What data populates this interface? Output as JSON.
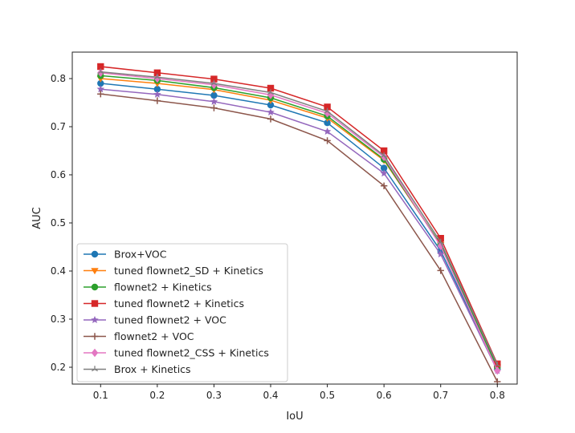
{
  "chart_data": {
    "type": "line",
    "title": "",
    "xlabel": "IoU",
    "ylabel": "AUC",
    "x": [
      0.1,
      0.2,
      0.3,
      0.4,
      0.5,
      0.6,
      0.7,
      0.8
    ],
    "x_ticks": [
      "0.1",
      "0.2",
      "0.3",
      "0.4",
      "0.5",
      "0.6",
      "0.7",
      "0.8"
    ],
    "y_ticks": [
      "0.2",
      "0.3",
      "0.4",
      "0.5",
      "0.6",
      "0.7",
      "0.8"
    ],
    "xlim": [
      0.05,
      0.835
    ],
    "ylim": [
      0.165,
      0.855
    ],
    "grid": false,
    "legend_position": "lower-left",
    "series": [
      {
        "name": "Brox+VOC",
        "color": "#1f77b4",
        "marker": "circle",
        "values": [
          0.79,
          0.778,
          0.765,
          0.745,
          0.708,
          0.614,
          0.442,
          0.196
        ]
      },
      {
        "name": "tuned flownet2_SD + Kinetics",
        "color": "#ff7f0e",
        "marker": "triangle-down",
        "values": [
          0.8,
          0.79,
          0.777,
          0.755,
          0.718,
          0.63,
          0.455,
          0.2
        ]
      },
      {
        "name": "flownet2 + Kinetics",
        "color": "#2ca02c",
        "marker": "circle",
        "values": [
          0.806,
          0.796,
          0.781,
          0.76,
          0.722,
          0.632,
          0.455,
          0.2
        ]
      },
      {
        "name": "tuned flownet2 + Kinetics",
        "color": "#d62728",
        "marker": "square",
        "values": [
          0.825,
          0.812,
          0.799,
          0.78,
          0.741,
          0.65,
          0.468,
          0.207
        ]
      },
      {
        "name": "tuned flownet2 + VOC",
        "color": "#9467bd",
        "marker": "star",
        "values": [
          0.778,
          0.767,
          0.752,
          0.73,
          0.69,
          0.603,
          0.435,
          0.193
        ]
      },
      {
        "name": "flownet2 + VOC",
        "color": "#8c564b",
        "marker": "plus",
        "values": [
          0.768,
          0.754,
          0.739,
          0.716,
          0.671,
          0.577,
          0.401,
          0.17
        ]
      },
      {
        "name": "tuned flownet2_CSS + Kinetics",
        "color": "#e377c2",
        "marker": "diamond",
        "values": [
          0.812,
          0.8,
          0.787,
          0.766,
          0.728,
          0.637,
          0.452,
          0.193
        ]
      },
      {
        "name": "Brox + Kinetics",
        "color": "#7f7f7f",
        "marker": "tri-up",
        "values": [
          0.814,
          0.803,
          0.79,
          0.771,
          0.732,
          0.64,
          0.46,
          0.205
        ]
      }
    ]
  }
}
